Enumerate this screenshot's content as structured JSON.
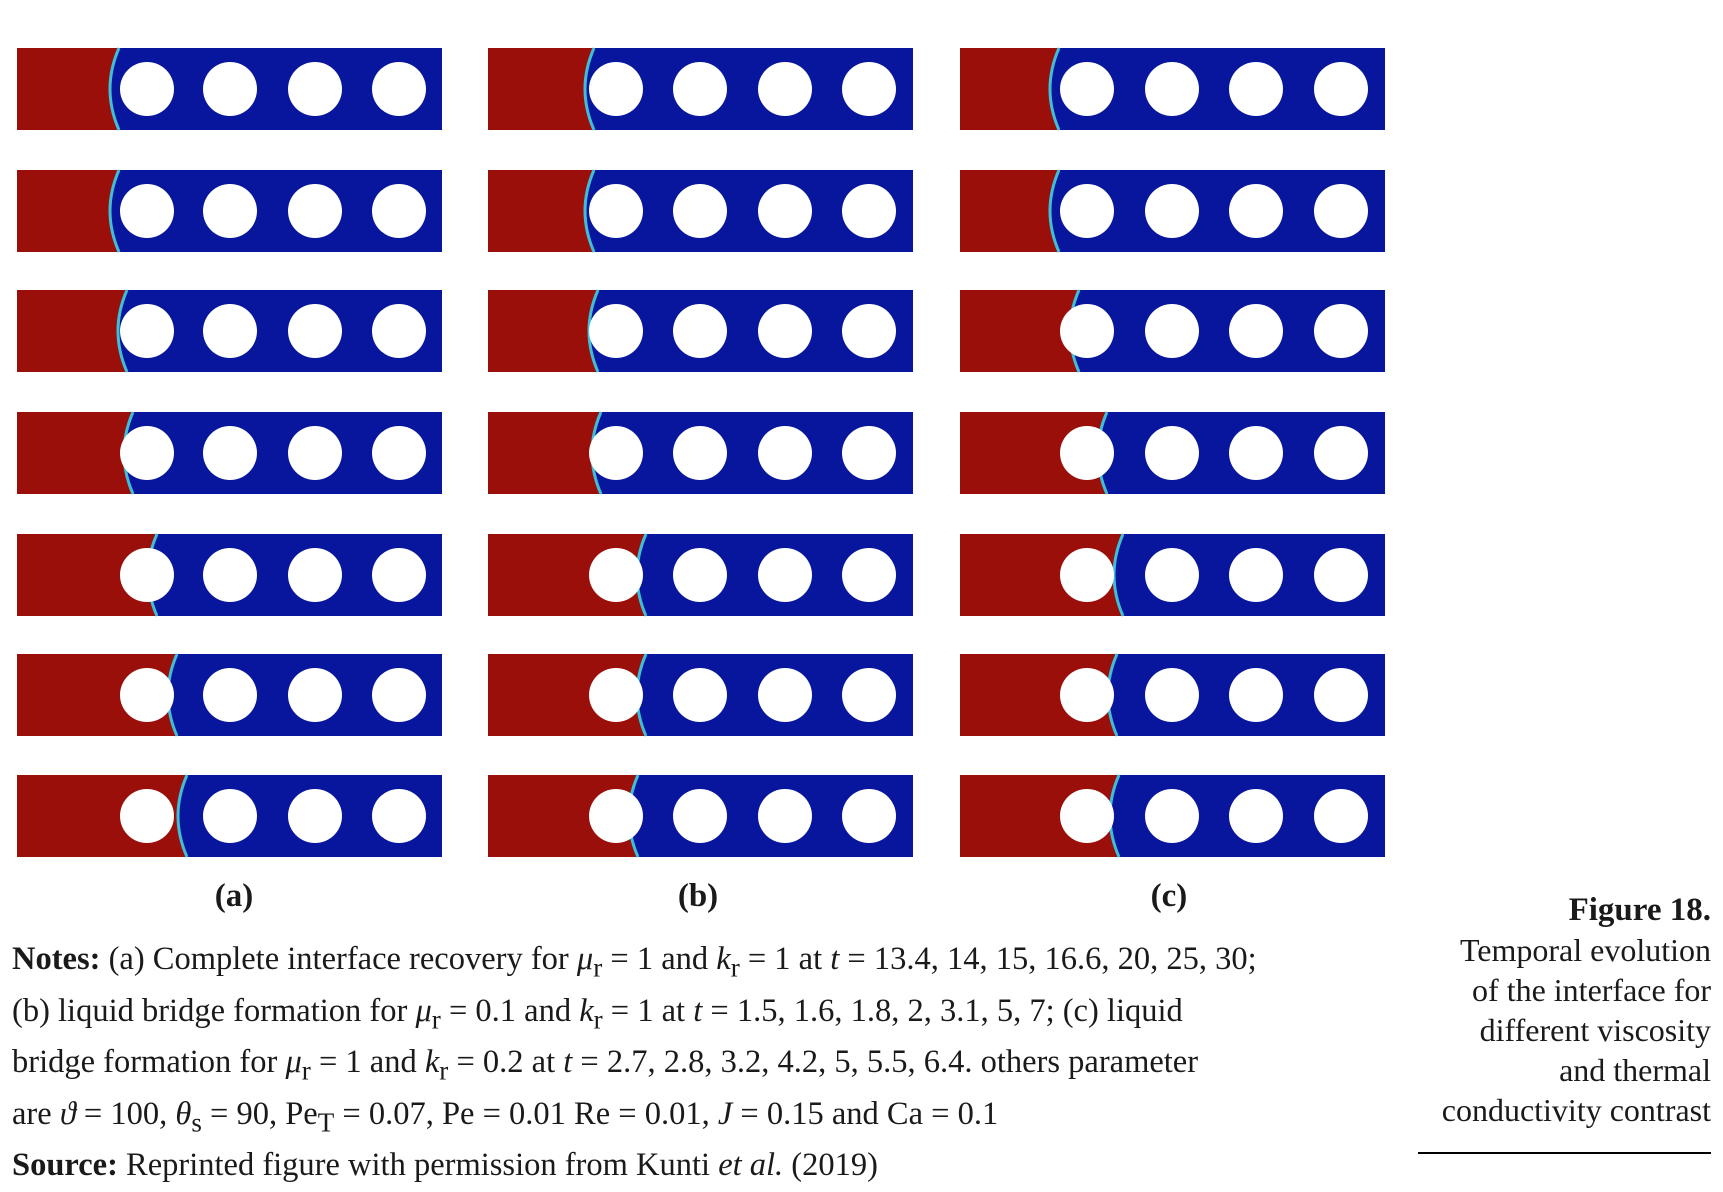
{
  "panels": [
    {
      "label": "(a)"
    },
    {
      "label": "(b)"
    },
    {
      "label": "(c)"
    }
  ],
  "colors": {
    "red_phase": "#9b0f0a",
    "blue_phase": "#07169c",
    "obstacle": "#ffffff"
  },
  "notes": {
    "label": "Notes:",
    "a_prefix": "(a) Complete interface recovery for",
    "a_values": "= 1 and",
    "a_values2": "= 1 at",
    "a_times": "= 13.4, 14, 15, 16.6, 20, 25, 30;",
    "b_prefix": "(b) liquid bridge formation for",
    "b_values": "= 0.1 and",
    "b_values2": "= 1 at",
    "b_times": "= 1.5, 1.6, 1.8, 2, 3.1, 5, 7; (c) liquid",
    "c_prefix": "bridge formation for",
    "c_values": "= 1 and",
    "c_values2": "= 0.2 at",
    "c_times": "= 2.7, 2.8, 3.2, 4.2, 5, 5.5, 6.4. others parameter",
    "params_prefix": "are",
    "params_1": "= 100,",
    "params_2": "= 90, Pe",
    "params_3": "= 0.07, Pe = 0.01 Re = 0.01,",
    "params_4": "= 0.15 and Ca = 0.1",
    "source_label": "Source:",
    "source_text": "Reprinted figure with permission from Kunti",
    "source_etal": "et al.",
    "source_year": "(2019)"
  },
  "caption": {
    "title": "Figure 18.",
    "lines": [
      "Temporal evolution",
      "of the interface for",
      "different viscosity",
      "and thermal",
      "conductivity contrast"
    ]
  },
  "symbols": {
    "mu": "μ",
    "k": "k",
    "t": "t",
    "theta_vartheta": "ϑ",
    "theta_s": "θ",
    "J": "J",
    "r": "r",
    "s": "s",
    "T": "T"
  }
}
